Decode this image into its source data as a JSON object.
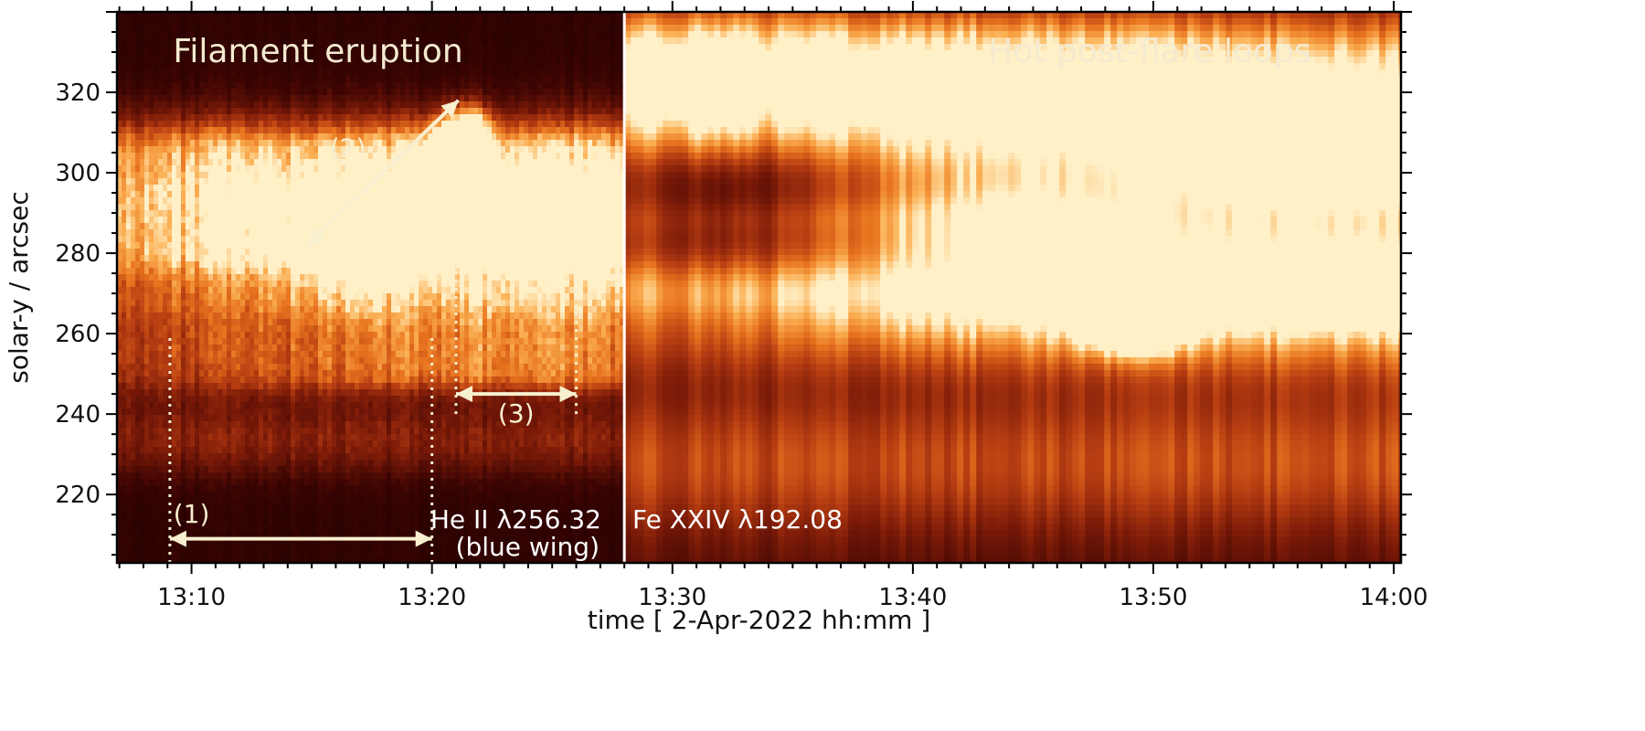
{
  "chart_data": {
    "type": "heatmap",
    "xlabel": "time [ 2-Apr-2022 hh:mm ]",
    "ylabel": "solar-y / arcsec",
    "x_unit": "minutes since 13:00 UT, 2-Apr-2022",
    "xlim": [
      6.9,
      60.3
    ],
    "ylim": [
      203,
      340
    ],
    "x_ticks": [
      {
        "value": 10,
        "label": "13:10"
      },
      {
        "value": 20,
        "label": "13:20"
      },
      {
        "value": 30,
        "label": "13:30"
      },
      {
        "value": 40,
        "label": "13:40"
      },
      {
        "value": 50,
        "label": "13:50"
      },
      {
        "value": 60,
        "label": "14:00"
      }
    ],
    "y_ticks": [
      220,
      240,
      260,
      280,
      300,
      320
    ],
    "colormap": [
      "#100000",
      "#3a0402",
      "#7a1a08",
      "#b83e12",
      "#e8741f",
      "#fbb054",
      "#fff0c8"
    ],
    "panel_divider_x": 28.0,
    "panels": [
      {
        "title": "Filament eruption",
        "line_label": "He II λ256.32",
        "line_sublabel": "(blue wing)",
        "xrange": [
          6.9,
          28.0
        ]
      },
      {
        "title": "Hot post-flare loops",
        "line_label": "Fe XXIV λ192.08",
        "xrange": [
          28.0,
          60.3
        ]
      }
    ],
    "annotations": [
      {
        "label": "(1)",
        "arrow": {
          "x1": 9.1,
          "y1": 209,
          "x2": 20.0,
          "y2": 209
        },
        "label_pos": {
          "x": 10.0,
          "y": 213
        },
        "guides": [
          {
            "x": 9.1,
            "y1": 203,
            "y2": 260
          },
          {
            "x": 20.0,
            "y1": 203,
            "y2": 260
          }
        ]
      },
      {
        "label": "(2)",
        "arrow": {
          "x1": 14.8,
          "y1": 282,
          "x2": 21.1,
          "y2": 318
        },
        "label_pos": {
          "x": 16.5,
          "y": 304
        },
        "guides": []
      },
      {
        "label": "(3)",
        "arrow": {
          "x1": 21.0,
          "y1": 245,
          "x2": 26.0,
          "y2": 245
        },
        "label_pos": {
          "x": 23.5,
          "y": 238
        },
        "guides": [
          {
            "x": 21.0,
            "y1": 240,
            "y2": 290
          },
          {
            "x": 26.0,
            "y1": 240,
            "y2": 290
          }
        ]
      }
    ],
    "intensity_features": [
      {
        "panel": 0,
        "kind": "blob",
        "x": 20.9,
        "y": 304,
        "sx": 0.7,
        "sy": 6,
        "a": 1.4
      },
      {
        "panel": 0,
        "kind": "blob",
        "x": 21.7,
        "y": 310,
        "sx": 0.5,
        "sy": 4,
        "a": 0.8
      },
      {
        "panel": 0,
        "kind": "blob",
        "x": 17.0,
        "y": 278,
        "sx": 1.6,
        "sy": 7,
        "a": 0.35
      },
      {
        "panel": 0,
        "kind": "blob",
        "x": 19.5,
        "y": 292,
        "sx": 0.8,
        "sy": 5,
        "a": 0.5
      },
      {
        "panel": 0,
        "kind": "ridge",
        "x1": 10.5,
        "y1": 255,
        "x2": 20.8,
        "y2": 305,
        "w": 9,
        "a": 0.28
      },
      {
        "panel": 0,
        "kind": "ridge",
        "x1": 21.3,
        "y1": 305,
        "x2": 23.6,
        "y2": 282,
        "w": 5,
        "a": 0.55
      },
      {
        "panel": 0,
        "kind": "ridge",
        "x1": 22.5,
        "y1": 295,
        "x2": 24.3,
        "y2": 250,
        "w": 3,
        "a": 0.35
      },
      {
        "panel": 0,
        "kind": "ridge",
        "x1": 23.0,
        "y1": 300,
        "x2": 26.5,
        "y2": 270,
        "w": 4,
        "a": 0.22
      },
      {
        "panel": 0,
        "kind": "band",
        "y": 233,
        "sy": 6,
        "a": 0.22
      },
      {
        "panel": 1,
        "kind": "ridge",
        "x1": 36.0,
        "y1": 322,
        "x2": 60.3,
        "y2": 302,
        "w": 10,
        "a": 0.85
      },
      {
        "panel": 1,
        "kind": "blob",
        "x": 57.5,
        "y": 299,
        "sx": 3.5,
        "sy": 5,
        "a": 0.55
      },
      {
        "panel": 1,
        "kind": "ridge",
        "x1": 30.0,
        "y1": 330,
        "x2": 45.0,
        "y2": 318,
        "w": 8,
        "a": 0.4
      },
      {
        "panel": 1,
        "kind": "ridge",
        "x1": 40.0,
        "y1": 288,
        "x2": 60.3,
        "y2": 280,
        "w": 5,
        "a": 0.45
      },
      {
        "panel": 1,
        "kind": "ridge",
        "x1": 42.0,
        "y1": 276,
        "x2": 60.3,
        "y2": 270,
        "w": 7,
        "a": 0.5
      },
      {
        "panel": 1,
        "kind": "ridge",
        "x1": 41.5,
        "y1": 270,
        "x2": 50.0,
        "y2": 268,
        "w": 5,
        "a": 0.45
      },
      {
        "panel": 1,
        "kind": "blob",
        "x": 49.2,
        "y": 261,
        "sx": 1.4,
        "sy": 4,
        "a": 1.1
      },
      {
        "panel": 1,
        "kind": "ridge",
        "x1": 48.0,
        "y1": 260,
        "x2": 60.3,
        "y2": 262,
        "w": 8,
        "a": 0.45
      },
      {
        "panel": 1,
        "kind": "blob",
        "x": 44.5,
        "y": 285,
        "sx": 2.5,
        "sy": 7,
        "a": 0.35
      },
      {
        "panel": 1,
        "kind": "blob",
        "x": 31.5,
        "y": 320,
        "sx": 1.2,
        "sy": 10,
        "a": 0.3
      },
      {
        "panel": 1,
        "kind": "band",
        "y": 228,
        "sy": 12,
        "a": 0.32
      },
      {
        "panel": 1,
        "kind": "hole",
        "x": 33.0,
        "y": 292,
        "sx": 4.5,
        "sy": 18,
        "a": 0.55
      }
    ]
  }
}
